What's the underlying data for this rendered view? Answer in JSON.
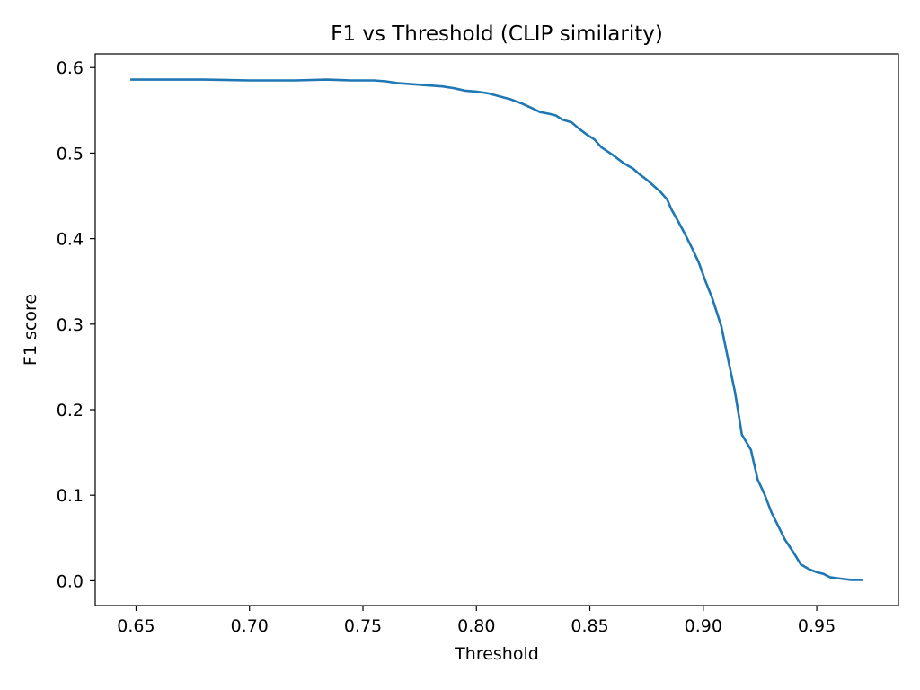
{
  "chart_data": {
    "type": "line",
    "title": "F1 vs Threshold (CLIP similarity)",
    "xlabel": "Threshold",
    "ylabel": "F1 score",
    "xlim": [
      0.632,
      0.986
    ],
    "ylim": [
      -0.029,
      0.616
    ],
    "xticks": [
      0.65,
      0.7,
      0.75,
      0.8,
      0.85,
      0.9,
      0.95
    ],
    "xtick_labels": [
      "0.65",
      "0.70",
      "0.75",
      "0.80",
      "0.85",
      "0.90",
      "0.95"
    ],
    "yticks": [
      0.0,
      0.1,
      0.2,
      0.3,
      0.4,
      0.5,
      0.6
    ],
    "ytick_labels": [
      "0.0",
      "0.1",
      "0.2",
      "0.3",
      "0.4",
      "0.5",
      "0.6"
    ],
    "grid": false,
    "color": "#1f77b4",
    "series": [
      {
        "name": "",
        "x": [
          0.648,
          0.66,
          0.68,
          0.7,
          0.72,
          0.734,
          0.745,
          0.755,
          0.76,
          0.765,
          0.775,
          0.785,
          0.79,
          0.795,
          0.8,
          0.805,
          0.808,
          0.812,
          0.815,
          0.82,
          0.825,
          0.828,
          0.832,
          0.835,
          0.838,
          0.842,
          0.845,
          0.849,
          0.852,
          0.855,
          0.86,
          0.865,
          0.869,
          0.872,
          0.875,
          0.878,
          0.881,
          0.884,
          0.886,
          0.889,
          0.892,
          0.895,
          0.898,
          0.901,
          0.904,
          0.908,
          0.911,
          0.914,
          0.917,
          0.921,
          0.924,
          0.927,
          0.93,
          0.933,
          0.936,
          0.94,
          0.943,
          0.947,
          0.95,
          0.953,
          0.956,
          0.959,
          0.962,
          0.965,
          0.97
        ],
        "y": [
          0.586,
          0.586,
          0.586,
          0.585,
          0.585,
          0.586,
          0.585,
          0.585,
          0.584,
          0.582,
          0.58,
          0.578,
          0.576,
          0.573,
          0.572,
          0.57,
          0.568,
          0.565,
          0.563,
          0.558,
          0.552,
          0.548,
          0.546,
          0.544,
          0.539,
          0.536,
          0.529,
          0.521,
          0.516,
          0.507,
          0.498,
          0.488,
          0.482,
          0.475,
          0.469,
          0.462,
          0.455,
          0.446,
          0.434,
          0.42,
          0.405,
          0.389,
          0.372,
          0.35,
          0.33,
          0.297,
          0.258,
          0.22,
          0.171,
          0.153,
          0.118,
          0.101,
          0.08,
          0.064,
          0.048,
          0.032,
          0.019,
          0.013,
          0.01,
          0.008,
          0.004,
          0.003,
          0.002,
          0.001,
          0.001
        ]
      }
    ]
  }
}
